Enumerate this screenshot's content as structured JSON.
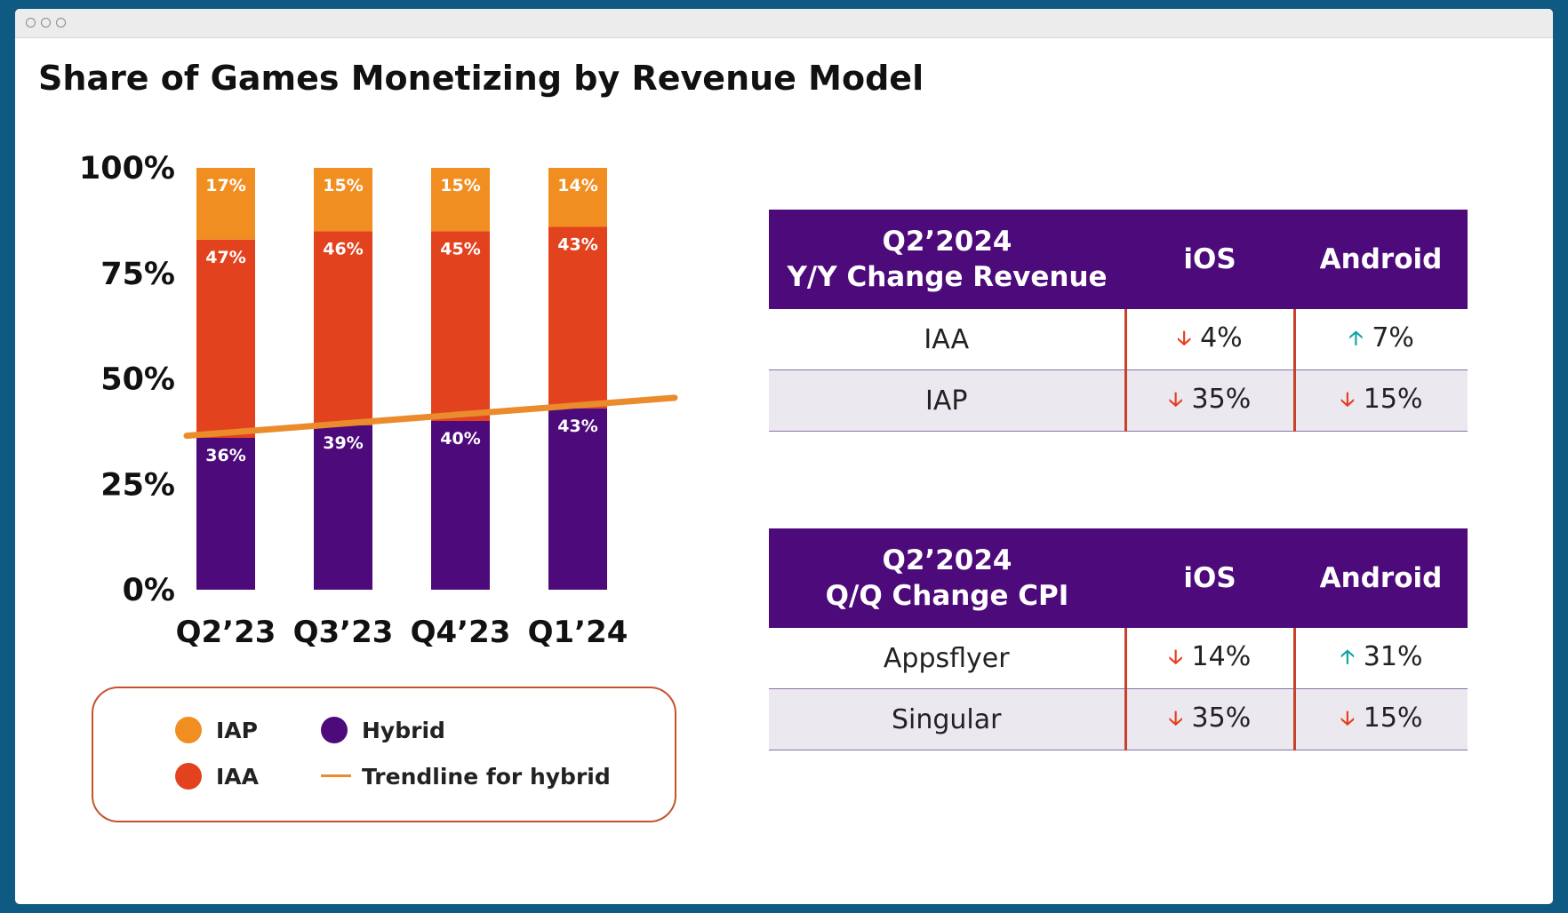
{
  "window": {
    "controls": [
      "close",
      "minimize",
      "zoom"
    ]
  },
  "title": "Share of Games Monetizing by Revenue Model",
  "chart_data": {
    "type": "bar",
    "stacked": true,
    "categories": [
      "Q2’23",
      "Q3’23",
      "Q4’23",
      "Q1’24"
    ],
    "ylim": [
      0,
      100
    ],
    "y_ticks": [
      "0%",
      "25%",
      "50%",
      "75%",
      "100%"
    ],
    "series": [
      {
        "name": "Hybrid",
        "color": "#4d0a7a",
        "values": [
          36,
          39,
          40,
          43
        ],
        "labels": [
          "36%",
          "39%",
          "40%",
          "43%"
        ]
      },
      {
        "name": "IAA",
        "color": "#e2421d",
        "values": [
          47,
          46,
          45,
          43
        ],
        "labels": [
          "47%",
          "46%",
          "45%",
          "43%"
        ]
      },
      {
        "name": "IAP",
        "color": "#f18e21",
        "values": [
          17,
          15,
          15,
          14
        ],
        "labels": [
          "17%",
          "15%",
          "15%",
          "14%"
        ]
      }
    ],
    "trendline": {
      "name": "Trendline for hybrid",
      "color": "#ea8b2c",
      "start": 36.5,
      "end": 45.5
    }
  },
  "legend": {
    "items": [
      {
        "label": "IAP",
        "color": "#f18e21",
        "marker": "circle"
      },
      {
        "label": "IAA",
        "color": "#e2421d",
        "marker": "circle"
      },
      {
        "label": "Hybrid",
        "color": "#4d0a7a",
        "marker": "circle"
      },
      {
        "label": "Trendline for hybrid",
        "color": "#ea8b2c",
        "marker": "line"
      }
    ]
  },
  "tables": [
    {
      "header": {
        "title_line1": "Q2’2024",
        "title_line2": "Y/Y Change Revenue",
        "col1": "iOS",
        "col2": "Android"
      },
      "rows": [
        {
          "label": "IAA",
          "ios": {
            "dir": "down",
            "value": "4%"
          },
          "android": {
            "dir": "up",
            "value": "7%"
          }
        },
        {
          "label": "IAP",
          "ios": {
            "dir": "down",
            "value": "35%"
          },
          "android": {
            "dir": "down",
            "value": "15%"
          }
        }
      ]
    },
    {
      "header": {
        "title_line1": "Q2’2024",
        "title_line2": "Q/Q Change CPI",
        "col1": "iOS",
        "col2": "Android"
      },
      "rows": [
        {
          "label": "Appsflyer",
          "ios": {
            "dir": "down",
            "value": "14%"
          },
          "android": {
            "dir": "up",
            "value": "31%"
          }
        },
        {
          "label": "Singular",
          "ios": {
            "dir": "down",
            "value": "35%"
          },
          "android": {
            "dir": "down",
            "value": "15%"
          }
        }
      ]
    }
  ],
  "icons": {
    "down": "arrow-down-icon",
    "up": "arrow-up-icon"
  },
  "colors": {
    "header_bg": "#4d0a7a",
    "row_alt_bg": "#ebe8ef",
    "divider": "#c9402b",
    "down_arrow": "#e63c1e",
    "up_arrow": "#10a3a6"
  }
}
